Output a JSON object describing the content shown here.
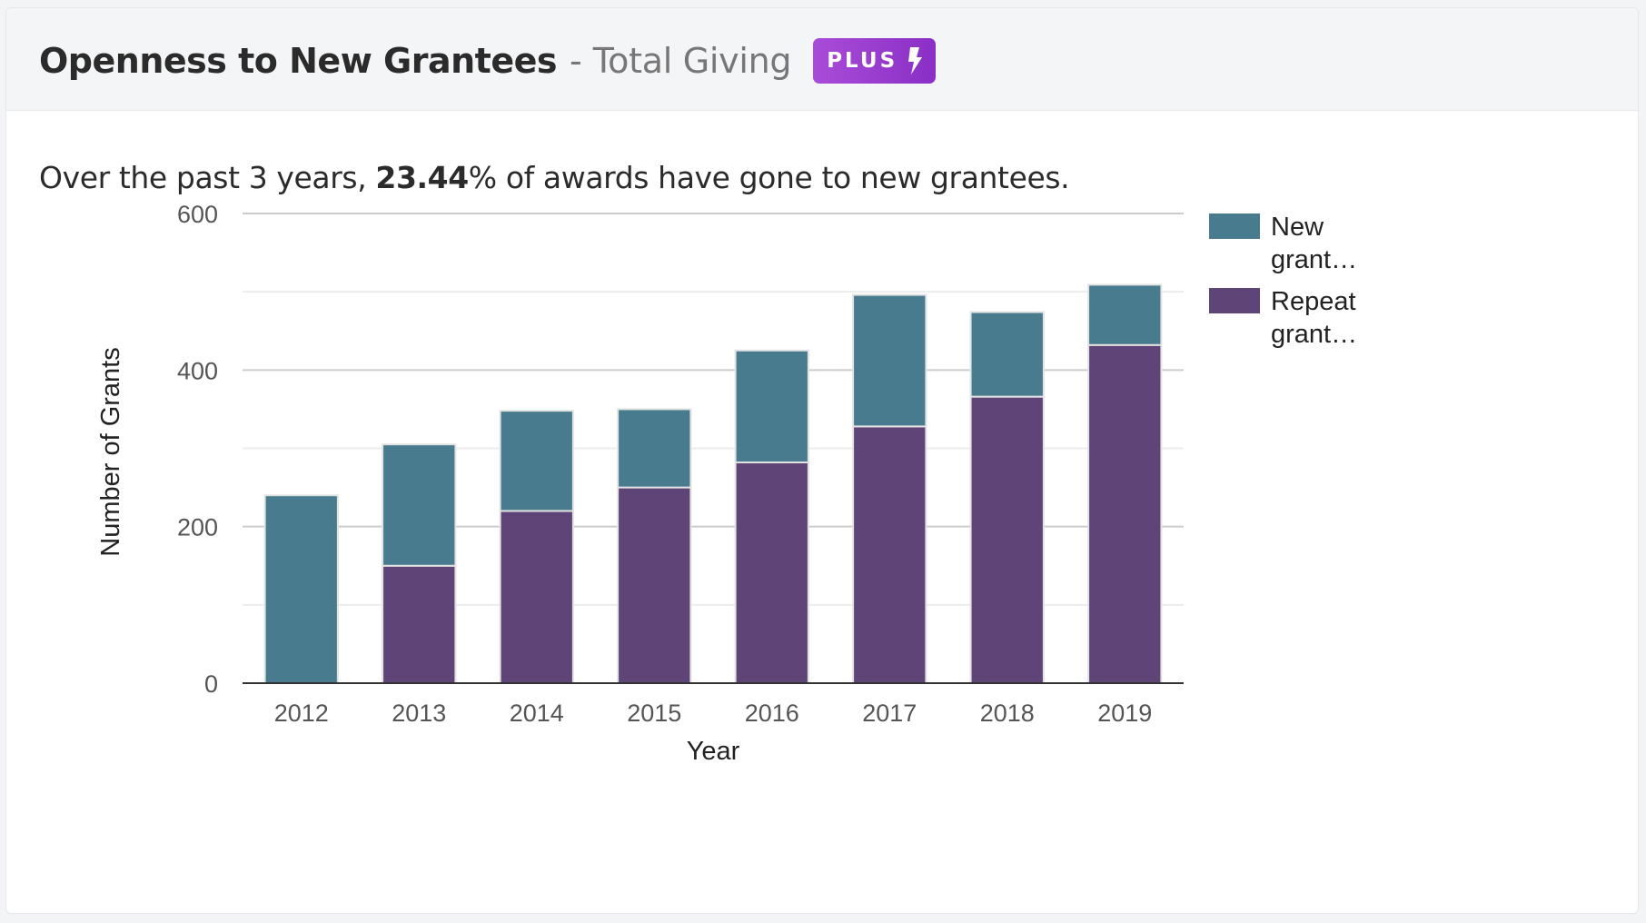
{
  "header": {
    "title": "Openness to New Grantees",
    "separator": "-",
    "subtitle": "Total Giving",
    "badge": "PLUS",
    "badge_icon": "lightning-bolt-icon"
  },
  "summary": {
    "prefix": "Over the past 3 years, ",
    "highlight": "23.44",
    "suffix": "% of awards have gone to new grantees."
  },
  "colors": {
    "new": "#477b8d",
    "repeat": "#5f4577",
    "badge": "#9b3fd0"
  },
  "chart_data": {
    "type": "bar",
    "stacked": true,
    "categories": [
      "2012",
      "2013",
      "2014",
      "2015",
      "2016",
      "2017",
      "2018",
      "2019"
    ],
    "series": [
      {
        "name": "Repeat grant…",
        "values": [
          0,
          150,
          220,
          250,
          282,
          328,
          366,
          432
        ]
      },
      {
        "name": "New grant…",
        "values": [
          240,
          155,
          128,
          100,
          143,
          168,
          108,
          77
        ]
      }
    ],
    "xlabel": "Year",
    "ylabel": "Number of Grants",
    "ylim": [
      0,
      600
    ],
    "yticks": [
      0,
      200,
      400,
      600
    ],
    "grid": true,
    "legend": "right"
  }
}
